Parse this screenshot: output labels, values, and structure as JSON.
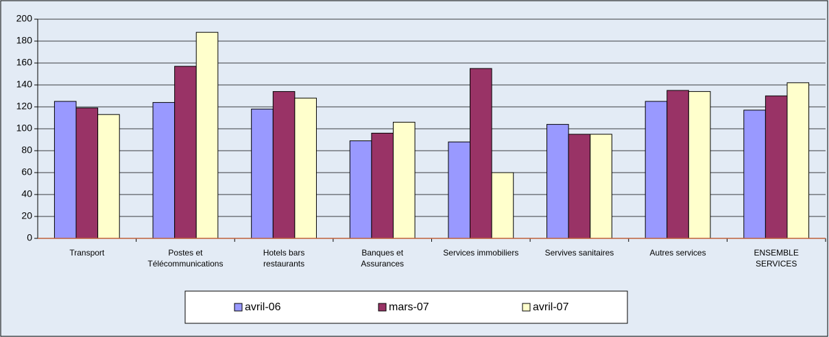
{
  "chart_data": {
    "type": "bar",
    "categories": [
      "Transport",
      "Postes et\nTélécommunications",
      "Hotels bars\nrestaurants",
      "Banques et\nAssurances",
      "Services immobiliers",
      "Servives sanitaires",
      "Autres services",
      "ENSEMBLE\nSERVICES"
    ],
    "series": [
      {
        "name": "avril-06",
        "color": "#9999ff",
        "values": [
          125,
          124,
          118,
          89,
          88,
          104,
          125,
          117
        ]
      },
      {
        "name": "mars-07",
        "color": "#993366",
        "values": [
          119,
          157,
          134,
          96,
          155,
          95,
          135,
          130
        ]
      },
      {
        "name": "avril-07",
        "color": "#ffffcc",
        "values": [
          113,
          188,
          128,
          106,
          60,
          95,
          134,
          142
        ]
      }
    ],
    "ylim": [
      0,
      200
    ],
    "yticks": [
      0,
      20,
      40,
      60,
      80,
      100,
      120,
      140,
      160,
      180,
      200
    ],
    "grid": true,
    "legend": "bottom"
  }
}
